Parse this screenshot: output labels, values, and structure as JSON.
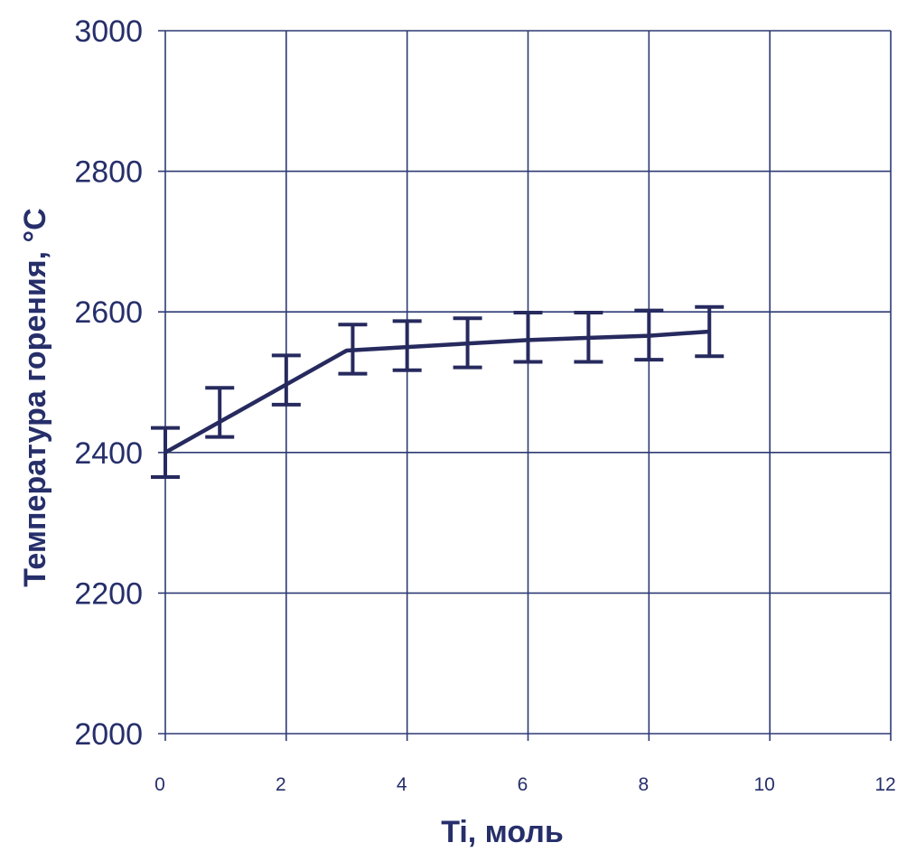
{
  "chart_data": {
    "type": "line",
    "xlabel": "Ti, моль",
    "ylabel": "Температура горения, °С",
    "xlim": [
      0,
      12
    ],
    "ylim": [
      2000,
      3000
    ],
    "xticks": [
      "0",
      "2",
      "4",
      "6",
      "8",
      "10",
      "12"
    ],
    "yticks": [
      "2000",
      "2200",
      "2400",
      "2600",
      "2800",
      "3000"
    ],
    "grid": true,
    "line_color": "#262a5e",
    "series": [
      {
        "x": [
          0,
          3,
          4,
          6,
          8,
          9
        ],
        "y": [
          2400,
          2545,
          2550,
          2560,
          2566,
          2572
        ]
      }
    ],
    "error_bars": [
      {
        "x": 0,
        "low": 2365,
        "high": 2435
      },
      {
        "x": 0.9,
        "low": 2422,
        "high": 2492
      },
      {
        "x": 2,
        "low": 2468,
        "high": 2538
      },
      {
        "x": 3.1,
        "low": 2512,
        "high": 2582
      },
      {
        "x": 4,
        "low": 2517,
        "high": 2587
      },
      {
        "x": 5,
        "low": 2521,
        "high": 2591
      },
      {
        "x": 6,
        "low": 2529,
        "high": 2599
      },
      {
        "x": 7,
        "low": 2529,
        "high": 2599
      },
      {
        "x": 8,
        "low": 2532,
        "high": 2602
      },
      {
        "x": 9,
        "low": 2537,
        "high": 2607
      }
    ]
  }
}
